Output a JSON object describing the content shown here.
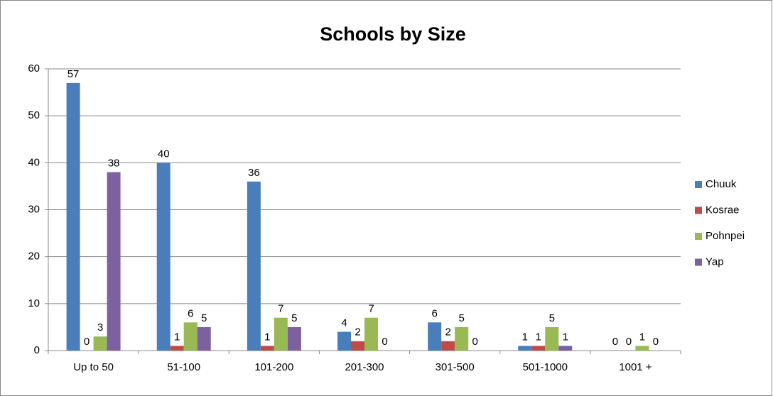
{
  "chart_data": {
    "type": "bar",
    "title": "Schools by Size",
    "categories": [
      "Up to 50",
      "51-100",
      "101-200",
      "201-300",
      "301-500",
      "501-1000",
      "1001 +"
    ],
    "series": [
      {
        "name": "Chuuk",
        "color": "#4a7ebb",
        "values": [
          57,
          40,
          36,
          4,
          6,
          1,
          0
        ]
      },
      {
        "name": "Kosrae",
        "color": "#be4b48",
        "values": [
          0,
          1,
          1,
          2,
          2,
          1,
          0
        ]
      },
      {
        "name": "Pohnpei",
        "color": "#98b954",
        "values": [
          3,
          6,
          7,
          7,
          5,
          5,
          1
        ]
      },
      {
        "name": "Yap",
        "color": "#7d60a0",
        "values": [
          38,
          5,
          5,
          0,
          0,
          1,
          0
        ]
      }
    ],
    "ylim": [
      0,
      60
    ],
    "yticks": [
      0,
      10,
      20,
      30,
      40,
      50,
      60
    ],
    "grid": true,
    "legend": "right"
  }
}
